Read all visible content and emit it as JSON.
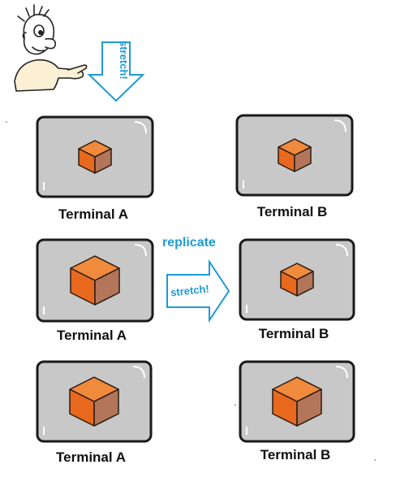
{
  "colors": {
    "screen": "#c8c8c8",
    "frame": "#1a1a1a",
    "cube_front": "#e8691e",
    "cube_top": "#f08a3c",
    "cube_side": "#b3765a",
    "arrow": "#1e9ad6"
  },
  "top_arrow": {
    "text": "stretch!"
  },
  "replicate_label": "replicate",
  "middle_arrow": {
    "text": "stretch!"
  },
  "rows": [
    {
      "terminal_a": "Terminal A",
      "terminal_b": "Terminal B"
    },
    {
      "terminal_a": "Terminal A",
      "terminal_b": "Terminal B"
    },
    {
      "terminal_a": "Terminal A",
      "terminal_b": "Terminal B"
    }
  ]
}
